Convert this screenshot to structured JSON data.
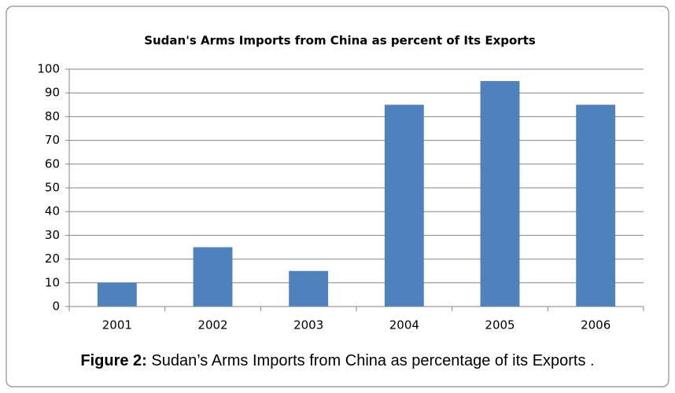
{
  "chart_data": {
    "type": "bar",
    "title": "Sudan's Arms Imports from China as percent of Its Exports",
    "categories": [
      "2001",
      "2002",
      "2003",
      "2004",
      "2005",
      "2006"
    ],
    "values": [
      10,
      25,
      15,
      85,
      95,
      85
    ],
    "color": "#4f81bd",
    "ylim": [
      0,
      100
    ],
    "yticks": [
      0,
      10,
      20,
      30,
      40,
      50,
      60,
      70,
      80,
      90,
      100
    ],
    "grid": true
  },
  "caption": {
    "label": "Figure 2:",
    "text": "Sudan’s Arms Imports from China as percentage of its Exports ."
  }
}
